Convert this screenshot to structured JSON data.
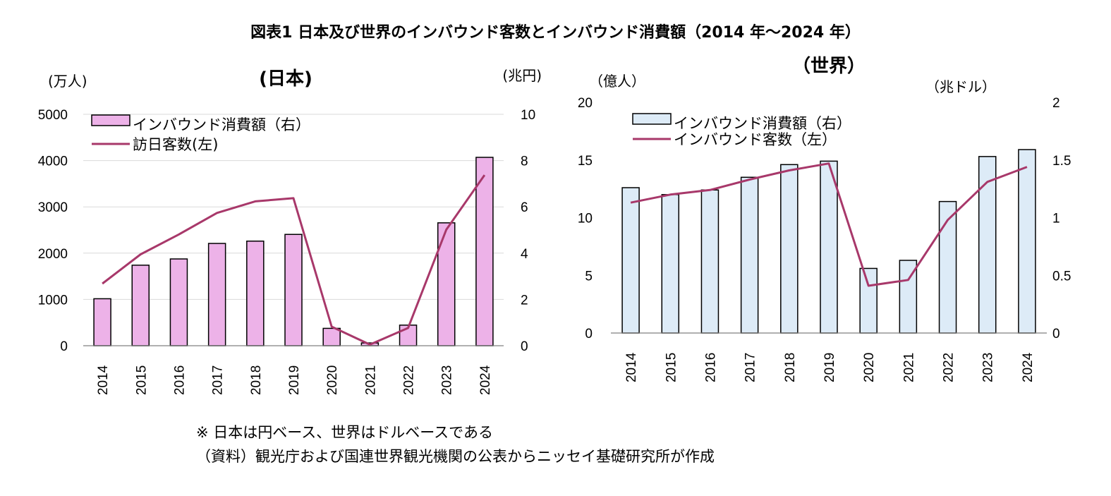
{
  "title": "図表1  日本及び世界のインバウンド客数とインバウンド消費額（2014 年～2024 年）",
  "notes": [
    "※  日本は円ベース、世界はドルベースである",
    "（資料）観光庁および国連世界観光機関の公表からニッセイ基礎研究所が作成"
  ],
  "colors": {
    "japan_bar": "#EDB2E8",
    "world_bar": "#DDEBF7",
    "line": "#A8386A",
    "grid": "#D9D9D9",
    "axis": "#808080"
  },
  "chart_data": [
    {
      "type": "bar+line",
      "title": "(日本)",
      "left_axis_label": "(万人)",
      "right_axis_label": "(兆円)",
      "categories": [
        "2014",
        "2015",
        "2016",
        "2017",
        "2018",
        "2019",
        "2020",
        "2021",
        "2022",
        "2023",
        "2024"
      ],
      "left_ticks": [
        "0",
        "1000",
        "2000",
        "3000",
        "4000",
        "5000"
      ],
      "right_ticks": [
        "0",
        "2",
        "4",
        "6",
        "8",
        "10"
      ],
      "left_range": [
        0,
        5000
      ],
      "right_range": [
        0,
        10
      ],
      "grid": true,
      "legend_position": "top-left",
      "series": [
        {
          "name": "インバウンド消費額（右）",
          "type": "bar",
          "axis": "right",
          "values": [
            2.03,
            3.48,
            3.75,
            4.42,
            4.52,
            4.81,
            0.75,
            0.12,
            0.89,
            5.31,
            8.14
          ]
        },
        {
          "name": "訪日客数(左)",
          "type": "line",
          "axis": "left",
          "values": [
            1341,
            1974,
            2404,
            2869,
            3119,
            3188,
            412,
            25,
            383,
            2507,
            3687
          ]
        }
      ]
    },
    {
      "type": "bar+line",
      "title": "（世界）",
      "left_axis_label": "（億人）",
      "right_axis_label": "（兆ドル）",
      "categories": [
        "2014",
        "2015",
        "2016",
        "2017",
        "2018",
        "2019",
        "2020",
        "2021",
        "2022",
        "2023",
        "2024"
      ],
      "left_ticks": [
        "0",
        "5",
        "10",
        "15",
        "20"
      ],
      "right_ticks": [
        "0",
        "0.5",
        "1",
        "1.5",
        "2"
      ],
      "left_range": [
        0,
        20
      ],
      "right_range": [
        0,
        2
      ],
      "grid": false,
      "legend_position": "top-left",
      "series": [
        {
          "name": "インバウンド消費額（右）",
          "type": "bar",
          "axis": "right",
          "values": [
            1.26,
            1.2,
            1.24,
            1.35,
            1.46,
            1.49,
            0.56,
            0.63,
            1.14,
            1.53,
            1.59
          ]
        },
        {
          "name": "インバウンド客数（左）",
          "type": "line",
          "axis": "left",
          "values": [
            11.3,
            12.0,
            12.4,
            13.3,
            14.1,
            14.7,
            4.1,
            4.6,
            9.8,
            13.1,
            14.4
          ]
        }
      ]
    }
  ]
}
